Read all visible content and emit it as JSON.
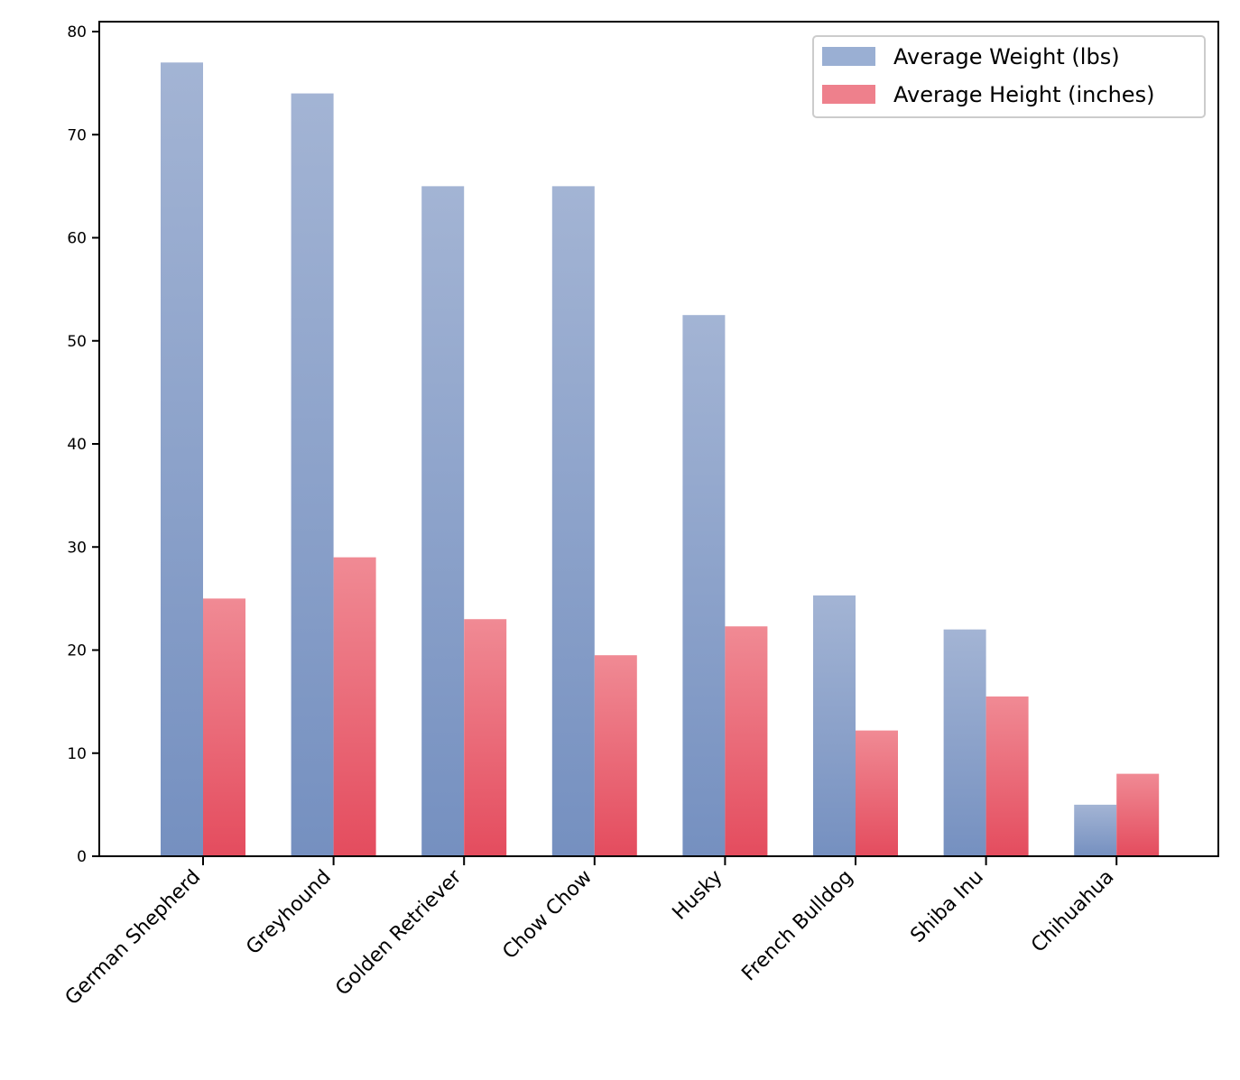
{
  "chart_data": {
    "type": "bar",
    "categories": [
      "German Shepherd",
      "Greyhound",
      "Golden Retriever",
      "Chow Chow",
      "Husky",
      "French Bulldog",
      "Shiba Inu",
      "Chihuahua"
    ],
    "series": [
      {
        "name": "Average Weight (lbs)",
        "values": [
          77,
          74,
          65,
          65,
          52.5,
          25.3,
          22,
          5
        ],
        "color": "#7a93c2"
      },
      {
        "name": "Average Height (inches)",
        "values": [
          25,
          29,
          23,
          19.5,
          22.3,
          12.2,
          15.5,
          8
        ],
        "color": "#e84f60"
      }
    ],
    "title": "",
    "xlabel": "",
    "ylabel": "",
    "ylim": [
      0,
      80
    ],
    "yticks": [
      0,
      10,
      20,
      30,
      40,
      50,
      60,
      70,
      80
    ],
    "grid": false,
    "legend_position": "top-right"
  }
}
